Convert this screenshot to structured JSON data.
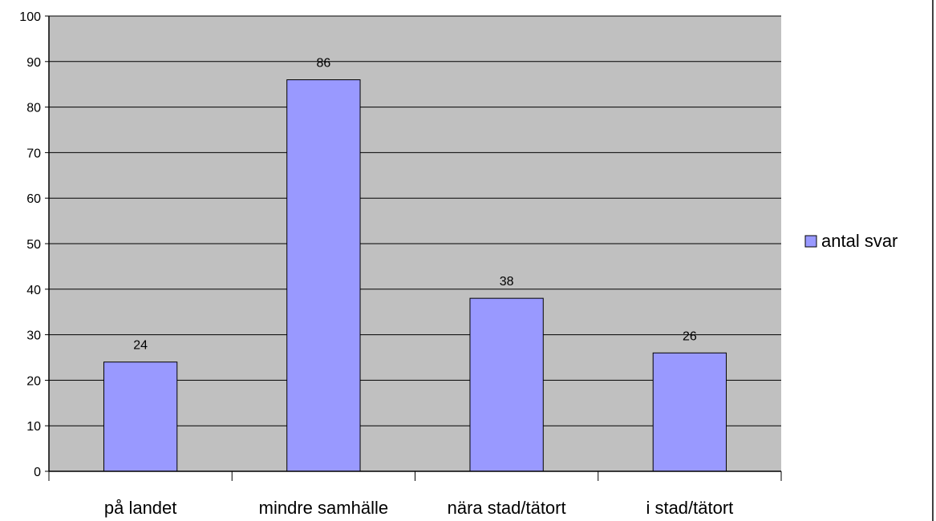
{
  "chart_data": {
    "type": "bar",
    "categories": [
      "på landet",
      "mindre samhälle",
      "nära stad/tätort",
      "i stad/tätort"
    ],
    "series": [
      {
        "name": "antal svar",
        "values": [
          24,
          86,
          38,
          26
        ]
      }
    ],
    "title": "",
    "xlabel": "",
    "ylabel": "",
    "ylim": [
      0,
      100
    ],
    "yticks": [
      0,
      10,
      20,
      30,
      40,
      50,
      60,
      70,
      80,
      90,
      100
    ],
    "grid": true,
    "legend_position": "right",
    "colors": {
      "bar": "#9999ff",
      "plot_background": "#c0c0c0",
      "gridline": "#000000"
    }
  }
}
